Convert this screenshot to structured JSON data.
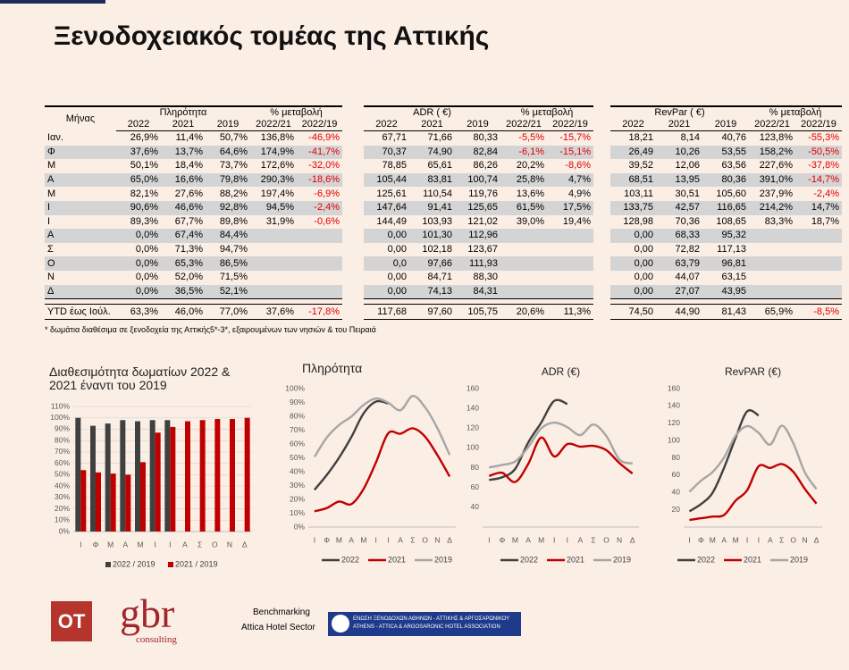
{
  "title": "Ξενοδοχειακός τομέας της Αττικής",
  "tables": [
    {
      "header": "Μήνας",
      "group": "Πληρότητα",
      "change": "% μεταβολή",
      "columns": [
        "2022",
        "2021",
        "2019",
        "2022/21",
        "2022/19"
      ],
      "rows": [
        [
          "Ιαν.",
          "26,9%",
          "11,4%",
          "50,7%",
          "136,8%",
          "-46,9%"
        ],
        [
          "Φ",
          "37,6%",
          "13,7%",
          "64,6%",
          "174,9%",
          "-41,7%"
        ],
        [
          "Μ",
          "50,1%",
          "18,4%",
          "73,7%",
          "172,6%",
          "-32,0%"
        ],
        [
          "Α",
          "65,0%",
          "16,6%",
          "79,8%",
          "290,3%",
          "-18,6%"
        ],
        [
          "Μ",
          "82,1%",
          "27,6%",
          "88,2%",
          "197,4%",
          "-6,9%"
        ],
        [
          "Ι",
          "90,6%",
          "46,6%",
          "92,8%",
          "94,5%",
          "-2,4%"
        ],
        [
          "Ι",
          "89,3%",
          "67,7%",
          "89,8%",
          "31,9%",
          "-0,6%"
        ],
        [
          "Α",
          "0,0%",
          "67,4%",
          "84,4%"
        ],
        [
          "Σ",
          "0,0%",
          "71,3%",
          "94,7%"
        ],
        [
          "Ο",
          "0,0%",
          "65,3%",
          "86,5%"
        ],
        [
          "Ν",
          "0,0%",
          "52,0%",
          "71,5%"
        ],
        [
          "Δ",
          "0,0%",
          "36,5%",
          "52,1%"
        ]
      ],
      "total": [
        "YTD έως Ιούλ.",
        "63,3%",
        "46,0%",
        "77,0%",
        "37,6%",
        "-17,8%"
      ]
    },
    {
      "group": "ADR ( €)",
      "change": "% μεταβολή",
      "columns": [
        "2022",
        "2021",
        "2019",
        "2022/21",
        "2022/19"
      ],
      "rows": [
        [
          "67,71",
          "71,66",
          "80,33",
          "-5,5%",
          "-15,7%"
        ],
        [
          "70,37",
          "74,90",
          "82,84",
          "-6,1%",
          "-15,1%"
        ],
        [
          "78,85",
          "65,61",
          "86,26",
          "20,2%",
          "-8,6%"
        ],
        [
          "105,44",
          "83,81",
          "100,74",
          "25,8%",
          "4,7%"
        ],
        [
          "125,61",
          "110,54",
          "119,76",
          "13,6%",
          "4,9%"
        ],
        [
          "147,64",
          "91,41",
          "125,65",
          "61,5%",
          "17,5%"
        ],
        [
          "144,49",
          "103,93",
          "121,02",
          "39,0%",
          "19,4%"
        ],
        [
          "0,00",
          "101,30",
          "112,96"
        ],
        [
          "0,00",
          "102,18",
          "123,67"
        ],
        [
          "0,0",
          "97,66",
          "111,93"
        ],
        [
          "0,00",
          "84,71",
          "88,30"
        ],
        [
          "0,00",
          "74,13",
          "84,31"
        ]
      ],
      "total": [
        "117,68",
        "97,60",
        "105,75",
        "20,6%",
        "11,3%"
      ]
    },
    {
      "group": "RevPar ( €)",
      "change": "% μεταβολή",
      "columns": [
        "2022",
        "2021",
        "2019",
        "2022/21",
        "2022/19"
      ],
      "rows": [
        [
          "18,21",
          "8,14",
          "40,76",
          "123,8%",
          "-55,3%"
        ],
        [
          "26,49",
          "10,26",
          "53,55",
          "158,2%",
          "-50,5%"
        ],
        [
          "39,52",
          "12,06",
          "63,56",
          "227,6%",
          "-37,8%"
        ],
        [
          "68,51",
          "13,95",
          "80,36",
          "391,0%",
          "-14,7%"
        ],
        [
          "103,11",
          "30,51",
          "105,60",
          "237,9%",
          "-2,4%"
        ],
        [
          "133,75",
          "42,57",
          "116,65",
          "214,2%",
          "14,7%"
        ],
        [
          "128,98",
          "70,36",
          "108,65",
          "83,3%",
          "18,7%"
        ],
        [
          "0,00",
          "68,33",
          "95,32"
        ],
        [
          "0,00",
          "72,82",
          "117,13"
        ],
        [
          "0,00",
          "63,79",
          "96,81"
        ],
        [
          "0,00",
          "44,07",
          "63,15"
        ],
        [
          "0,00",
          "27,07",
          "43,95"
        ]
      ],
      "total": [
        "74,50",
        "44,90",
        "81,43",
        "65,9%",
        "-8,5%"
      ]
    }
  ],
  "note": "* δωμάτια διαθέσιμα σε ξενοδοχεία της Αττικής5*-3*, εξαιρουμένων των νησιών & του Πειραιά",
  "chart_data": [
    {
      "type": "bar",
      "title": "Διαθεσιμότητα δωματίων 2022 & 2021 έναντι του 2019",
      "grid": true,
      "categories": [
        "Ι",
        "Φ",
        "Μ",
        "Α",
        "Μ",
        "Ι",
        "Ι",
        "Α",
        "Σ",
        "Ο",
        "Ν",
        "Δ"
      ],
      "series": [
        {
          "name": "2022 / 2019",
          "color": "#404040",
          "values": [
            100,
            93,
            95,
            98,
            97,
            98,
            98,
            null,
            null,
            null,
            null,
            null
          ]
        },
        {
          "name": "2021 / 2019",
          "color": "#c00000",
          "values": [
            54,
            52,
            51,
            50,
            61,
            87,
            92,
            97,
            98,
            99,
            99,
            100
          ]
        }
      ],
      "ylim": [
        0,
        110
      ],
      "yticks": [
        {
          "value": 0,
          "label": "0%"
        },
        {
          "value": 10,
          "label": "10%"
        },
        {
          "value": 20,
          "label": "20%"
        },
        {
          "value": 30,
          "label": "30%"
        },
        {
          "value": 40,
          "label": "40%"
        },
        {
          "value": 50,
          "label": "50%"
        },
        {
          "value": 60,
          "label": "60%"
        },
        {
          "value": 70,
          "label": "70%"
        },
        {
          "value": 80,
          "label": "80%"
        },
        {
          "value": 90,
          "label": "90%"
        },
        {
          "value": 100,
          "label": "100%"
        },
        {
          "value": 110,
          "label": "110%"
        }
      ]
    },
    {
      "type": "line",
      "title": "Πληρότητα",
      "grid": false,
      "categories": [
        "Ι",
        "Φ",
        "Μ",
        "Α",
        "Μ",
        "Ι",
        "Ι",
        "Α",
        "Σ",
        "Ο",
        "Ν",
        "Δ"
      ],
      "series": [
        {
          "name": "2022",
          "color": "#404040",
          "values": [
            26.9,
            37.6,
            50.1,
            65.0,
            82.1,
            90.6,
            89.3,
            null,
            null,
            null,
            null,
            null
          ]
        },
        {
          "name": "2021",
          "color": "#c00000",
          "values": [
            11.4,
            13.7,
            18.4,
            16.6,
            27.6,
            46.6,
            67.7,
            67.4,
            71.3,
            65.3,
            52.0,
            36.5
          ]
        },
        {
          "name": "2019",
          "color": "#a6a6a6",
          "values": [
            50.7,
            64.6,
            73.7,
            79.8,
            88.2,
            92.8,
            89.8,
            84.4,
            94.7,
            86.5,
            71.5,
            52.1
          ]
        }
      ],
      "ylim": [
        0,
        100
      ],
      "yticks": [
        {
          "value": 0,
          "label": "0%"
        },
        {
          "value": 10,
          "label": "10%"
        },
        {
          "value": 20,
          "label": "20%"
        },
        {
          "value": 30,
          "label": "30%"
        },
        {
          "value": 40,
          "label": "40%"
        },
        {
          "value": 50,
          "label": "50%"
        },
        {
          "value": 60,
          "label": "60%"
        },
        {
          "value": 70,
          "label": "70%"
        },
        {
          "value": 80,
          "label": "80%"
        },
        {
          "value": 90,
          "label": "90%"
        },
        {
          "value": 100,
          "label": "100%"
        }
      ]
    },
    {
      "type": "line",
      "title": "ADR (€)",
      "grid": false,
      "categories": [
        "Ι",
        "Φ",
        "Μ",
        "Α",
        "Μ",
        "Ι",
        "Ι",
        "Α",
        "Σ",
        "Ο",
        "Ν",
        "Δ"
      ],
      "series": [
        {
          "name": "2022",
          "color": "#404040",
          "values": [
            67.71,
            70.37,
            78.85,
            105.44,
            125.61,
            147.64,
            144.49,
            null,
            null,
            null,
            null,
            null
          ]
        },
        {
          "name": "2021",
          "color": "#c00000",
          "values": [
            71.66,
            74.9,
            65.61,
            83.81,
            110.54,
            91.41,
            103.93,
            101.3,
            102.18,
            97.66,
            84.71,
            74.13
          ]
        },
        {
          "name": "2019",
          "color": "#a6a6a6",
          "values": [
            80.33,
            82.84,
            86.26,
            100.74,
            119.76,
            125.65,
            121.02,
            112.96,
            123.67,
            111.93,
            88.3,
            84.31
          ]
        }
      ],
      "ylim": [
        20,
        160
      ],
      "yticks": [
        40,
        60,
        80,
        100,
        120,
        140,
        160
      ]
    },
    {
      "type": "line",
      "title": "RevPAR (€)",
      "grid": false,
      "categories": [
        "Ι",
        "Φ",
        "Μ",
        "Α",
        "Μ",
        "Ι",
        "Ι",
        "Α",
        "Σ",
        "Ο",
        "Ν",
        "Δ"
      ],
      "series": [
        {
          "name": "2022",
          "color": "#404040",
          "values": [
            18.21,
            26.49,
            39.52,
            68.51,
            103.11,
            133.75,
            128.98,
            null,
            null,
            null,
            null,
            null
          ]
        },
        {
          "name": "2021",
          "color": "#c00000",
          "values": [
            8.14,
            10.26,
            12.06,
            13.95,
            30.51,
            42.57,
            70.36,
            68.33,
            72.82,
            63.79,
            44.07,
            27.07
          ]
        },
        {
          "name": "2019",
          "color": "#a6a6a6",
          "values": [
            40.76,
            53.55,
            63.56,
            80.36,
            105.6,
            116.65,
            108.65,
            95.32,
            117.13,
            96.81,
            63.15,
            43.95
          ]
        }
      ],
      "ylim": [
        0,
        160
      ],
      "yticks": [
        20,
        40,
        60,
        80,
        100,
        120,
        140,
        160
      ]
    }
  ],
  "footer": {
    "logo_ot": "OT",
    "logo_gbr": "gbr",
    "logo_gbr_sub": "consulting",
    "benchmarking": "Benchmarking",
    "sector": "Attica Hotel Sector",
    "association_gr": "ΕΝΩΣΗ ΞΕΝΟΔΟΧΩΝ ΑΘΗΝΩΝ - ΑΤΤΙΚΗΣ & ΑΡΓΟΣΑΡΩΝΙΚΟΥ",
    "association_en": "ATHENS - ATTICA & ARGOSARONIC HOTEL ASSOCIATION"
  }
}
